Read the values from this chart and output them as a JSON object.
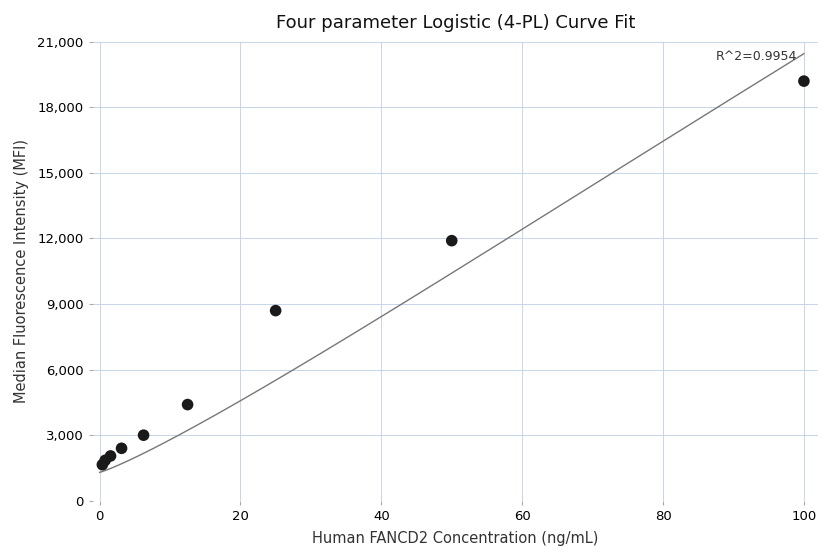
{
  "title": "Four parameter Logistic (4-PL) Curve Fit",
  "xlabel": "Human FANCD2 Concentration (ng/mL)",
  "ylabel": "Median Fluorescence Intensity (MFI)",
  "scatter_x": [
    0.4,
    0.8,
    1.56,
    3.125,
    6.25,
    12.5,
    25.0,
    50.0,
    100.0
  ],
  "scatter_y": [
    1650,
    1850,
    2050,
    2400,
    3000,
    4400,
    8700,
    11900,
    19200
  ],
  "r_squared": "R^2=0.9954",
  "xlim": [
    -1,
    102
  ],
  "ylim": [
    0,
    21000
  ],
  "yticks": [
    0,
    3000,
    6000,
    9000,
    12000,
    15000,
    18000,
    21000
  ],
  "xticks": [
    0,
    20,
    40,
    60,
    80,
    100
  ],
  "bg_color": "#ffffff",
  "grid_color": "#c8d4e8",
  "scatter_color": "#1a1a1a",
  "curve_color": "#777777",
  "scatter_size": 70,
  "4pl_A": 1300,
  "4pl_B": 1.15,
  "4pl_C": 700,
  "4pl_D": 200000,
  "title_fontsize": 13,
  "label_fontsize": 10.5,
  "tick_fontsize": 9.5,
  "annot_fontsize": 9
}
